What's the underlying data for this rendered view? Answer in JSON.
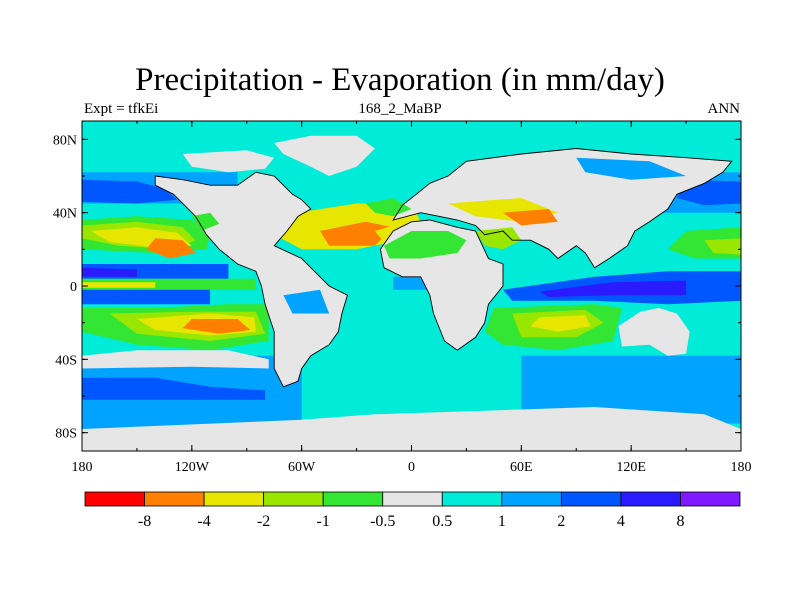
{
  "title": "Precipitation - Evaporation (in mm/day)",
  "left_string": "Expt = tfkEi",
  "center_string": "168_2_MaBP",
  "right_string": "ANN",
  "map": {
    "projection": "cylindrical-equidistant",
    "lon_range": [
      -180,
      180
    ],
    "lat_range": [
      -90,
      90
    ],
    "lat_ticks": [
      "80N",
      "40N",
      "0",
      "40S",
      "80S"
    ],
    "lat_tick_values": [
      80,
      40,
      0,
      -40,
      -80
    ],
    "lon_ticks": [
      "180",
      "120W",
      "60W",
      "0",
      "60E",
      "120E",
      "180"
    ],
    "lon_tick_values": [
      -180,
      -120,
      -60,
      0,
      60,
      120,
      180
    ],
    "coastline_color": "#000000",
    "land_color": "#e6e6e6"
  },
  "colorbar": {
    "levels": [
      "-8",
      "-4",
      "-2",
      "-1",
      "-0.5",
      "0.5",
      "1",
      "2",
      "4",
      "8"
    ],
    "colors": [
      "#ff0000",
      "#ff7f00",
      "#e6e600",
      "#99e600",
      "#33e633",
      "#e6e6e6",
      "#00ebd8",
      "#00a3ff",
      "#0057ff",
      "#2a1aff",
      "#7f1aff"
    ]
  }
}
